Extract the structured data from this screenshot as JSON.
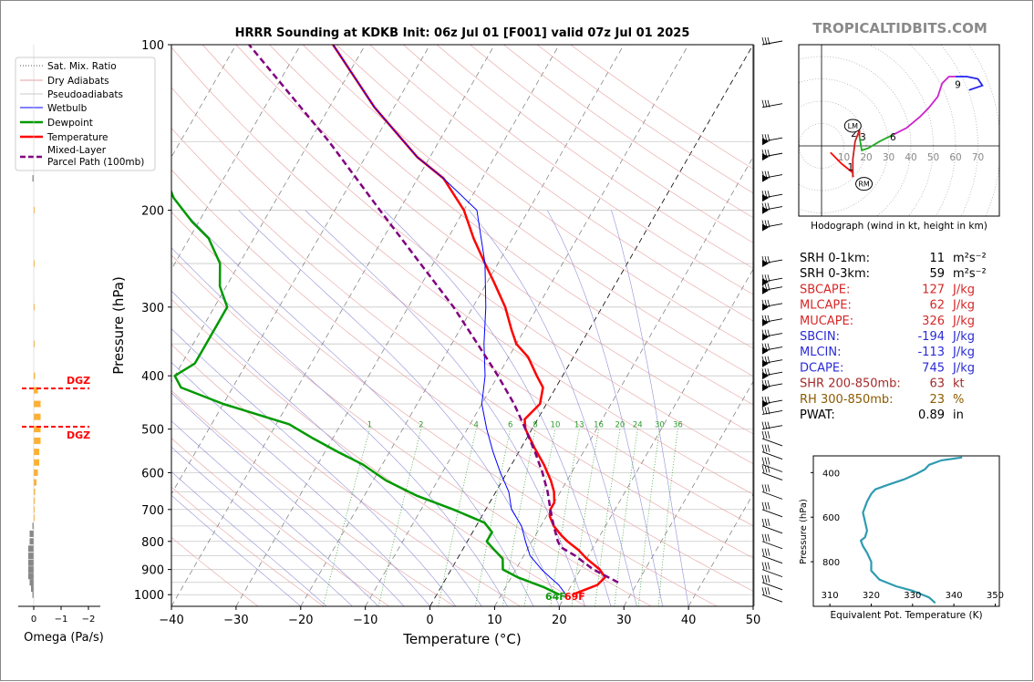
{
  "brand": "TROPICALTIDBITS.COM",
  "title": "HRRR Sounding at KDKB Init: 06z Jul 01 [F001] valid 07z Jul 01 2025",
  "legend": [
    "Sat. Mix. Ratio",
    "Dry Adiabats",
    "Pseudoadiabats",
    "Wetbulb",
    "Dewpoint",
    "Temperature",
    "Mixed-Layer",
    "Parcel Path (100mb)"
  ],
  "surface": {
    "dewpoint_label": "64F",
    "temperature_label": "69F"
  },
  "dgz_label": "DGZ",
  "mixing_ratio_labels": [
    "1",
    "2",
    "4",
    "6",
    "8",
    "10",
    "13",
    "16",
    "20",
    "24",
    "30",
    "36"
  ],
  "omega_axis": {
    "label": "Omega (Pa/s)",
    "ticks": [
      "0",
      "−1",
      "−2"
    ]
  },
  "hodograph": {
    "caption": "Hodograph (wind in kt, height in km)",
    "ring_labels": [
      "10",
      "20",
      "30",
      "40",
      "50",
      "60",
      "70"
    ],
    "height_labels": [
      "1",
      "2",
      "3",
      "6",
      "9"
    ],
    "lm": "LM",
    "rm": "RM"
  },
  "indices": [
    {
      "name": "SRH 0-1km:",
      "value": "11",
      "unit": "m²s⁻²",
      "color": "#000000"
    },
    {
      "name": "SRH 0-3km:",
      "value": "59",
      "unit": "m²s⁻²",
      "color": "#000000"
    },
    {
      "name": "SBCAPE:",
      "value": "127",
      "unit": "J/kg",
      "color": "#d62728"
    },
    {
      "name": "MLCAPE:",
      "value": "62",
      "unit": "J/kg",
      "color": "#d62728"
    },
    {
      "name": "MUCAPE:",
      "value": "326",
      "unit": "J/kg",
      "color": "#d62728"
    },
    {
      "name": "SBCIN:",
      "value": "-194",
      "unit": "J/kg",
      "color": "#2a2ad6"
    },
    {
      "name": "MLCIN:",
      "value": "-113",
      "unit": "J/kg",
      "color": "#2a2ad6"
    },
    {
      "name": "DCAPE:",
      "value": "745",
      "unit": "J/kg",
      "color": "#2a2ad6"
    },
    {
      "name": "SHR 200-850mb:",
      "value": "63",
      "unit": "kt",
      "color": "#a52a2a"
    },
    {
      "name": "RH 300-850mb:",
      "value": "23",
      "unit": "%",
      "color": "#8b5a00"
    },
    {
      "name": "PWAT:",
      "value": "0.89",
      "unit": "in",
      "color": "#000000"
    }
  ],
  "theta_e_chart": {
    "ylabel": "Pressure (hPa)",
    "xlabel": "Equivalent Pot. Temperature (K)",
    "yticks": [
      "400",
      "600",
      "800"
    ],
    "xticks": [
      "310",
      "320",
      "330",
      "340",
      "350"
    ]
  },
  "chart_data": [
    {
      "type": "line",
      "title": "HRRR Sounding at KDKB Init: 06z Jul 01 [F001] valid 07z Jul 01 2025",
      "xlabel": "Temperature (°C)",
      "ylabel": "Pressure (hPa)",
      "xlim": [
        -40,
        50
      ],
      "ylim": [
        1050,
        100
      ],
      "yscale": "log",
      "skew": true,
      "xticks": [
        "−40",
        "−30",
        "−20",
        "−10",
        "0",
        "10",
        "20",
        "30",
        "40",
        "50"
      ],
      "yticks": [
        "100",
        "200",
        "300",
        "400",
        "500",
        "600",
        "700",
        "800",
        "900",
        "1000"
      ],
      "series": [
        {
          "name": "Temperature",
          "color": "#ff0000",
          "points": [
            [
              21,
              1000
            ],
            [
              24,
              960
            ],
            [
              24.5,
              930
            ],
            [
              23,
              900
            ],
            [
              20,
              860
            ],
            [
              18,
              830
            ],
            [
              15.5,
              800
            ],
            [
              14,
              780
            ],
            [
              12,
              750
            ],
            [
              10.5,
              720
            ],
            [
              10,
              700
            ],
            [
              10,
              680
            ],
            [
              9,
              650
            ],
            [
              7.5,
              620
            ],
            [
              5,
              580
            ],
            [
              2,
              540
            ],
            [
              -1,
              500
            ],
            [
              -2,
              480
            ],
            [
              -1,
              450
            ],
            [
              -2,
              420
            ],
            [
              -4,
              400
            ],
            [
              -7,
              370
            ],
            [
              -10,
              350
            ],
            [
              -12,
              330
            ],
            [
              -15,
              300
            ],
            [
              -19,
              270
            ],
            [
              -22,
              250
            ],
            [
              -26,
              225
            ],
            [
              -30,
              200
            ],
            [
              -36,
              175
            ],
            [
              -42,
              160
            ],
            [
              -53,
              130
            ],
            [
              -65,
              100
            ]
          ]
        },
        {
          "name": "Dewpoint",
          "color": "#009900",
          "points": [
            [
              19,
              1000
            ],
            [
              16,
              970
            ],
            [
              11,
              930
            ],
            [
              8,
              900
            ],
            [
              7,
              860
            ],
            [
              5,
              830
            ],
            [
              3,
              800
            ],
            [
              3,
              770
            ],
            [
              1,
              740
            ],
            [
              -5,
              700
            ],
            [
              -12,
              660
            ],
            [
              -18,
              620
            ],
            [
              -23,
              580
            ],
            [
              -28,
              550
            ],
            [
              -33,
              520
            ],
            [
              -38,
              490
            ],
            [
              -50,
              450
            ],
            [
              -58,
              420
            ],
            [
              -60,
              400
            ],
            [
              -58,
              380
            ],
            [
              -58,
              360
            ],
            [
              -58,
              330
            ],
            [
              -58,
              300
            ],
            [
              -61,
              275
            ],
            [
              -63,
              250
            ],
            [
              -67,
              225
            ],
            [
              -71,
              210
            ],
            [
              -76,
              190
            ],
            [
              -80,
              170
            ],
            [
              -85,
              155
            ],
            [
              -92,
              130
            ],
            [
              -100,
              100
            ]
          ]
        },
        {
          "name": "Wetbulb",
          "color": "#0000ff",
          "points": [
            [
              20,
              1000
            ],
            [
              18,
              960
            ],
            [
              16,
              930
            ],
            [
              14,
              900
            ],
            [
              11,
              850
            ],
            [
              9,
              800
            ],
            [
              7,
              750
            ],
            [
              4,
              700
            ],
            [
              2,
              650
            ],
            [
              -1,
              600
            ],
            [
              -4,
              550
            ],
            [
              -7,
              500
            ],
            [
              -10,
              450
            ],
            [
              -12,
              400
            ],
            [
              -15,
              350
            ],
            [
              -18,
              300
            ],
            [
              -22,
              250
            ],
            [
              -28,
              200
            ],
            [
              -36,
              175
            ],
            [
              -42,
              160
            ],
            [
              -53,
              130
            ],
            [
              -65,
              100
            ]
          ]
        },
        {
          "name": "Mixed-Layer Parcel Path (100mb)",
          "color": "#800080",
          "dash": true,
          "points": [
            [
              27,
              950
            ],
            [
              22,
              900
            ],
            [
              18,
              850
            ],
            [
              15,
              820
            ],
            [
              14,
              800
            ],
            [
              12,
              750
            ],
            [
              10,
              700
            ],
            [
              8,
              650
            ],
            [
              5.5,
              600
            ],
            [
              2.5,
              550
            ],
            [
              -1,
              500
            ],
            [
              -5,
              450
            ],
            [
              -10,
              400
            ],
            [
              -16,
              350
            ],
            [
              -23,
              300
            ],
            [
              -32,
              250
            ],
            [
              -43,
              200
            ],
            [
              -57,
              150
            ],
            [
              -78,
              100
            ]
          ]
        }
      ]
    },
    {
      "type": "bar",
      "title": "",
      "xlabel": "Omega (Pa/s)",
      "ylabel": "",
      "xlim": [
        0.5,
        -2.5
      ],
      "orientation": "horizontal",
      "levels": [
        1000,
        975,
        950,
        925,
        900,
        875,
        850,
        825,
        800,
        775,
        750,
        725,
        700,
        675,
        650,
        625,
        600,
        575,
        550,
        525,
        500,
        475,
        450,
        425,
        400,
        350,
        300,
        250,
        200,
        175
      ],
      "values": [
        -0.05,
        -0.1,
        -0.15,
        -0.2,
        -0.2,
        -0.2,
        -0.2,
        -0.2,
        -0.15,
        -0.15,
        -0.05,
        0,
        0,
        0.04,
        0.05,
        0.1,
        0.15,
        0.2,
        0.2,
        0.25,
        0.25,
        0.25,
        0.25,
        0.15,
        0.05,
        0,
        0,
        0.02,
        0,
        -0.05
      ]
    },
    {
      "type": "line",
      "title": "Hodograph (wind in kt, height in km)",
      "xlabel": "",
      "ylabel": "",
      "xlim": [
        -10,
        80
      ],
      "ylim": [
        -32,
        45
      ],
      "series": [
        {
          "name": "0-1 km",
          "color": "#ff0000",
          "points": [
            [
              4,
              -3
            ],
            [
              9,
              -8
            ],
            [
              14,
              -12
            ],
            [
              14,
              -14
            ]
          ]
        },
        {
          "name": "1-3 km",
          "color": "#cc2222",
          "points": [
            [
              14,
              -14
            ],
            [
              14,
              -6
            ],
            [
              15,
              2
            ],
            [
              17,
              7
            ],
            [
              17,
              4
            ]
          ]
        },
        {
          "name": "3-6 km",
          "color": "#22aa22",
          "points": [
            [
              17,
              4
            ],
            [
              18,
              -2
            ],
            [
              21,
              -1
            ],
            [
              26,
              2
            ],
            [
              32,
              5
            ]
          ]
        },
        {
          "name": "6-9 km",
          "color": "#cc22cc",
          "points": [
            [
              32,
              5
            ],
            [
              38,
              8
            ],
            [
              44,
              13
            ],
            [
              48,
              17
            ],
            [
              52,
              22
            ],
            [
              54,
              28
            ],
            [
              57,
              31
            ],
            [
              60,
              31
            ]
          ]
        },
        {
          "name": "9+ km",
          "color": "#2222ee",
          "points": [
            [
              60,
              31
            ],
            [
              65,
              31
            ],
            [
              70,
              30
            ],
            [
              72,
              27
            ],
            [
              66,
              25
            ]
          ]
        }
      ],
      "markers": {
        "LM": [
          14,
          9
        ],
        "RM": [
          19,
          -17
        ]
      }
    },
    {
      "type": "line",
      "title": "",
      "xlabel": "Equivalent Pot. Temperature (K)",
      "ylabel": "Pressure (hPa)",
      "xlim": [
        306,
        351
      ],
      "ylim": [
        1000,
        325
      ],
      "series": [
        {
          "name": "theta-e",
          "color": "#2e9bb0",
          "points": [
            [
              335.5,
              985
            ],
            [
              334,
              960
            ],
            [
              330,
              930
            ],
            [
              326,
              910
            ],
            [
              322,
              880
            ],
            [
              320,
              840
            ],
            [
              320,
              800
            ],
            [
              319,
              760
            ],
            [
              318,
              730
            ],
            [
              317.5,
              705
            ],
            [
              318.5,
              690
            ],
            [
              319,
              660
            ],
            [
              318.5,
              620
            ],
            [
              318,
              580
            ],
            [
              319,
              530
            ],
            [
              320,
              495
            ],
            [
              321,
              475
            ],
            [
              324,
              455
            ],
            [
              328,
              430
            ],
            [
              331,
              405
            ],
            [
              333,
              385
            ],
            [
              334,
              365
            ],
            [
              337,
              345
            ],
            [
              342,
              332
            ]
          ]
        }
      ]
    }
  ]
}
